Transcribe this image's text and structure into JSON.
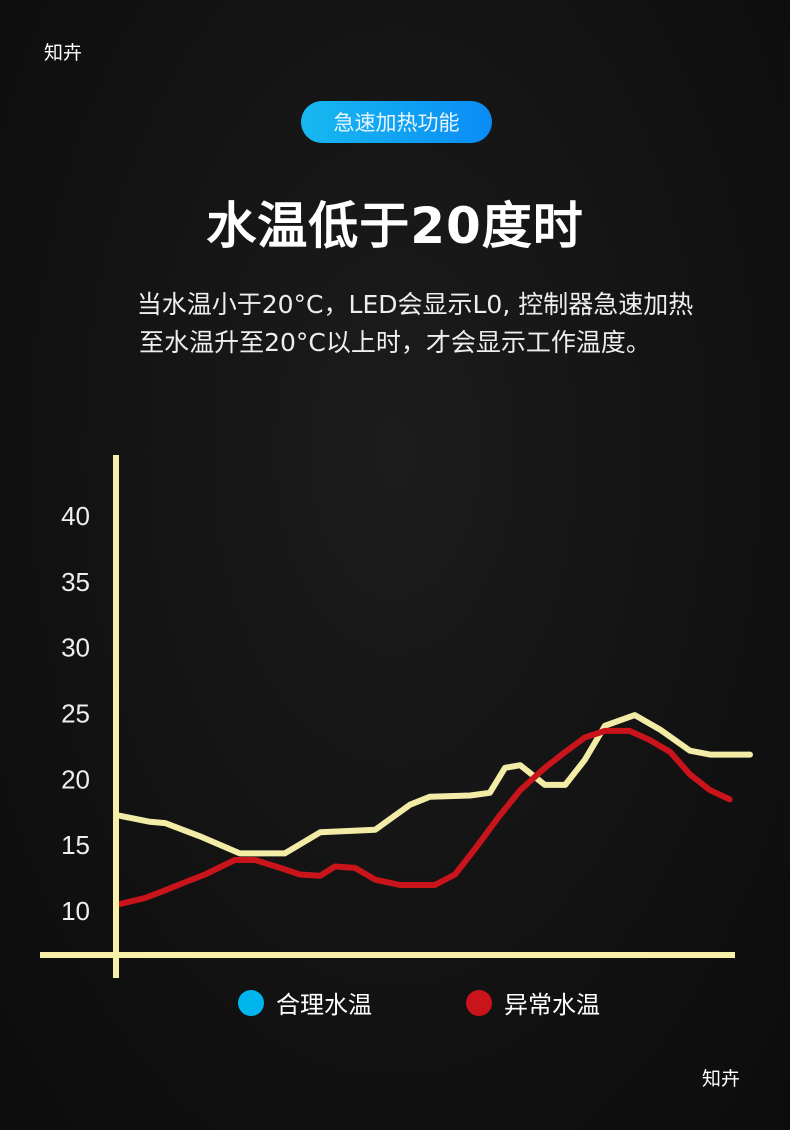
{
  "watermark": "知卉",
  "badge": "急速加热功能",
  "title": "水温低于20度时",
  "description": [
    "当水温小于20°C，LED会显示L0, 控制器急速加热",
    "至水温升至20°C以上时，才会显示工作温度。"
  ],
  "colors": {
    "axis": "#f7f0a8",
    "normal": "#00b4ee",
    "abnormal": "#c8141a",
    "normal_line": "#f3eca6"
  },
  "chart_data": {
    "type": "line",
    "title": "",
    "xlabel": "",
    "ylabel": "",
    "ylim": [
      10,
      40
    ],
    "xlim": [
      0,
      100
    ],
    "yticks": [
      "10",
      "15",
      "20",
      "25",
      "30",
      "35",
      "40"
    ],
    "grid": false,
    "legend_position": "bottom",
    "series": [
      {
        "name": "合理水温",
        "x": [
          0,
          5.2,
          7.6,
          13.1,
          19.4,
          26.5,
          32.1,
          40.8,
          46.3,
          49.4,
          55.8,
          58.9,
          61.3,
          63.7,
          67.6,
          70.8,
          73.9,
          77.1,
          81.8,
          85.8,
          90.5,
          93.7,
          100
        ],
        "y": [
          17.2,
          16.7,
          16.6,
          15.6,
          14.3,
          14.3,
          15.9,
          16.1,
          18.0,
          18.6,
          18.7,
          18.9,
          20.8,
          21.0,
          19.5,
          19.5,
          21.4,
          24.0,
          24.8,
          23.7,
          22.1,
          21.8,
          21.8
        ]
      },
      {
        "name": "异常水温",
        "x": [
          0,
          4.4,
          7.6,
          10.7,
          13.9,
          18.6,
          21.8,
          25.8,
          28.9,
          32.1,
          34.4,
          37.6,
          40.8,
          44.7,
          50.2,
          53.4,
          56.5,
          60.5,
          63.7,
          67.6,
          70.8,
          73.9,
          77.1,
          81.0,
          84.2,
          87.4,
          90.5,
          93.7,
          96.8
        ],
        "y": [
          10.4,
          10.9,
          11.5,
          12.1,
          12.7,
          13.8,
          13.8,
          13.2,
          12.7,
          12.6,
          13.3,
          13.2,
          12.3,
          11.9,
          11.9,
          12.7,
          14.6,
          17.2,
          19.1,
          20.8,
          22.0,
          23.1,
          23.6,
          23.6,
          22.9,
          22.0,
          20.3,
          19.1,
          18.4
        ]
      }
    ]
  }
}
